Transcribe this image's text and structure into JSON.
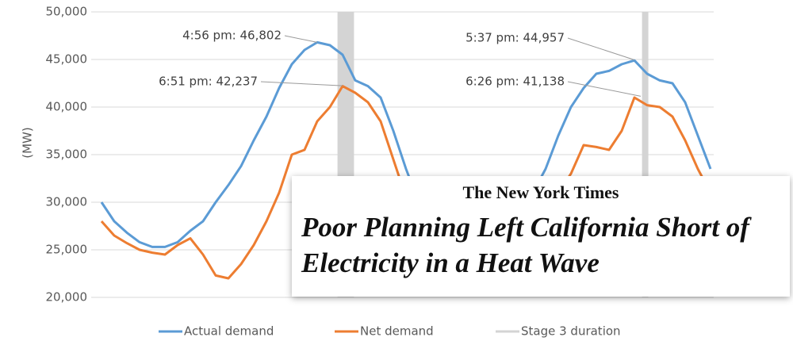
{
  "chart_data": {
    "type": "line",
    "y_label": "(MW)",
    "ylim": [
      20000,
      50000
    ],
    "yticks": [
      {
        "value": 20000,
        "label": "20,000"
      },
      {
        "value": 25000,
        "label": "25,000"
      },
      {
        "value": 30000,
        "label": "30,000"
      },
      {
        "value": 35000,
        "label": "35,000"
      },
      {
        "value": 40000,
        "label": "40,000"
      },
      {
        "value": 45000,
        "label": "45,000"
      },
      {
        "value": 50000,
        "label": "50,000"
      }
    ],
    "xlim": [
      0,
      48
    ],
    "grid": true,
    "series": [
      {
        "name": "Actual demand",
        "color": "#5b9bd5",
        "values": [
          30000,
          28000,
          26800,
          25800,
          25300,
          25300,
          25800,
          27000,
          28000,
          30000,
          31800,
          33800,
          36500,
          39000,
          42000,
          44500,
          46000,
          46800,
          46500,
          45500,
          42800,
          42200,
          41000,
          37500,
          33500,
          30000,
          28000,
          26500,
          25800,
          25500,
          25800,
          26500,
          28000,
          29500,
          31000,
          33500,
          37000,
          40000,
          42000,
          43500,
          43800,
          44500,
          44900,
          43500,
          42800,
          42500,
          40500,
          37000,
          33500
        ]
      },
      {
        "name": "Net demand",
        "color": "#ed7d31",
        "values": [
          28000,
          26500,
          25700,
          25000,
          24700,
          24500,
          25500,
          26200,
          24500,
          22300,
          22000,
          23500,
          25500,
          28000,
          31000,
          35000,
          35500,
          38500,
          40000,
          42200,
          41500,
          40500,
          38500,
          34500,
          30500,
          28000,
          26500,
          25500,
          25000,
          25000,
          25500,
          26500,
          27500,
          28500,
          29500,
          30000,
          31000,
          33000,
          36000,
          35800,
          35500,
          37500,
          41000,
          40200,
          40000,
          39000,
          36500,
          33500,
          31000
        ]
      }
    ],
    "bands": {
      "name": "Stage 3 duration",
      "color": "#d4d4d4",
      "spans": [
        [
          18.6,
          19.9
        ],
        [
          42.6,
          43.1
        ]
      ]
    },
    "annotations": [
      {
        "label": "4:56 pm: 46,802",
        "x": 17,
        "y": 46802
      },
      {
        "label": "6:51 pm: 42,237",
        "x": 19,
        "y": 42237
      },
      {
        "label": "5:37 pm: 44,957",
        "x": 42,
        "y": 44957
      },
      {
        "label": "6:26 pm: 41,138",
        "x": 42.5,
        "y": 41138
      }
    ]
  },
  "overlay": {
    "masthead": "The New York Times",
    "headline": "Poor Planning Left California Short of Electricity in a Heat Wave"
  }
}
